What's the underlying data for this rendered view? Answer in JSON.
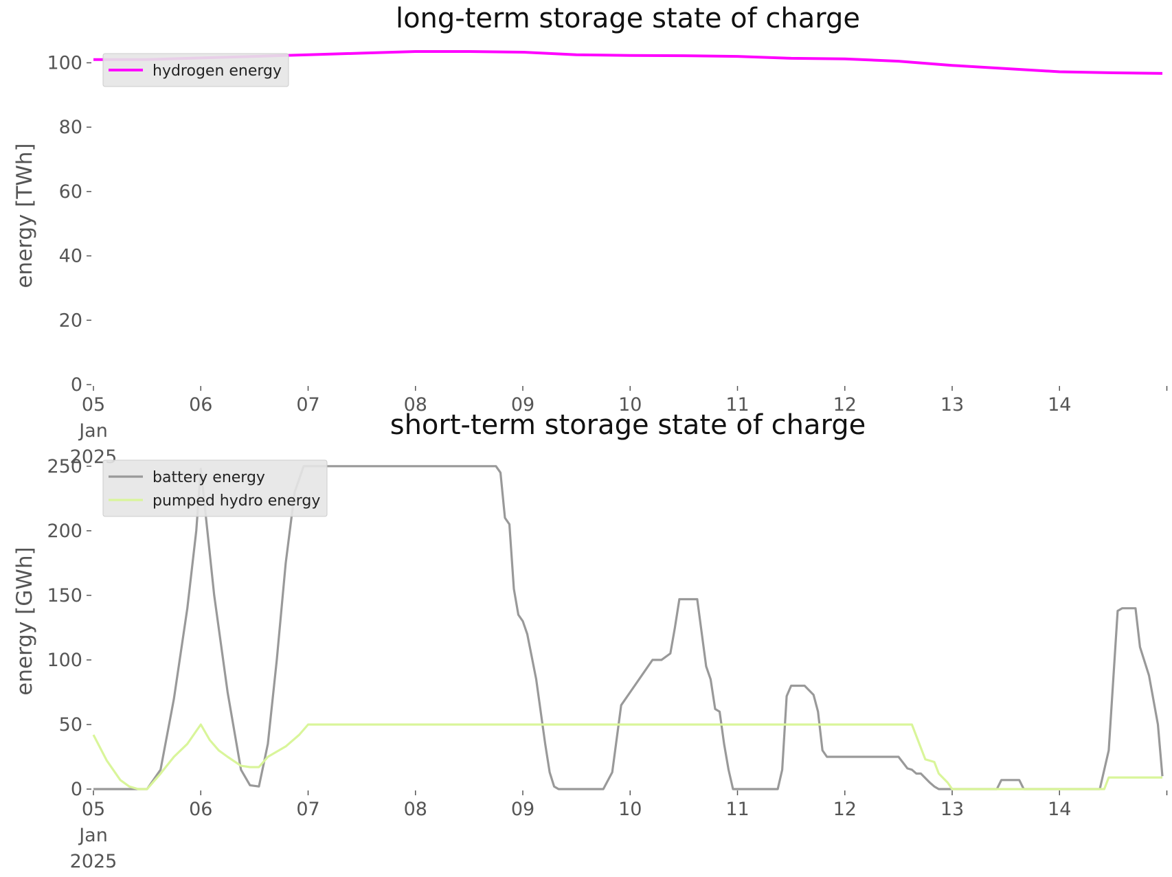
{
  "chart_data": [
    {
      "type": "line",
      "title": "long-term storage state of charge",
      "xlabel": "",
      "ylabel": "energy [TWh]",
      "ylim": [
        0,
        105
      ],
      "yticks": [
        0,
        20,
        40,
        60,
        80,
        100
      ],
      "x_tick_labels": [
        {
          "label": [
            "05",
            "Jan",
            "2025"
          ],
          "x": "2025-01-05"
        },
        {
          "label": [
            "06"
          ],
          "x": "2025-01-06"
        },
        {
          "label": [
            "07"
          ],
          "x": "2025-01-07"
        },
        {
          "label": [
            "08"
          ],
          "x": "2025-01-08"
        },
        {
          "label": [
            "09"
          ],
          "x": "2025-01-09"
        },
        {
          "label": [
            "10"
          ],
          "x": "2025-01-10"
        },
        {
          "label": [
            "11"
          ],
          "x": "2025-01-11"
        },
        {
          "label": [
            "12"
          ],
          "x": "2025-01-12"
        },
        {
          "label": [
            "13"
          ],
          "x": "2025-01-13"
        },
        {
          "label": [
            "14"
          ],
          "x": "2025-01-14"
        },
        {
          "label": [
            ""
          ],
          "x": "2025-01-15"
        }
      ],
      "xlim": [
        "2025-01-05",
        "2025-01-14 23:00"
      ],
      "grid": false,
      "legend": "upper-left",
      "series": [
        {
          "name": "hydrogen energy",
          "color": "#ff00ff",
          "x": [
            "2025-01-05 00:00",
            "2025-01-05 12:00",
            "2025-01-06 00:00",
            "2025-01-06 12:00",
            "2025-01-07 00:00",
            "2025-01-07 12:00",
            "2025-01-08 00:00",
            "2025-01-08 12:00",
            "2025-01-09 00:00",
            "2025-01-09 12:00",
            "2025-01-10 00:00",
            "2025-01-10 12:00",
            "2025-01-11 00:00",
            "2025-01-11 12:00",
            "2025-01-12 00:00",
            "2025-01-12 12:00",
            "2025-01-13 00:00",
            "2025-01-13 12:00",
            "2025-01-14 00:00",
            "2025-01-14 12:00",
            "2025-01-14 23:00"
          ],
          "values": [
            101,
            101,
            101.5,
            102,
            102.5,
            103,
            103.5,
            103.5,
            103.3,
            102.5,
            102.3,
            102.2,
            102,
            101.4,
            101.2,
            100.5,
            99.2,
            98.2,
            97.2,
            96.9,
            96.7
          ]
        }
      ]
    },
    {
      "type": "line",
      "title": "short-term storage state of charge",
      "xlabel": "",
      "ylabel": "energy [GWh]",
      "ylim": [
        0,
        260
      ],
      "yticks": [
        0,
        50,
        100,
        150,
        200,
        250
      ],
      "x_tick_labels": [
        {
          "label": [
            "05",
            "Jan",
            "2025"
          ],
          "x": "2025-01-05"
        },
        {
          "label": [
            "06"
          ],
          "x": "2025-01-06"
        },
        {
          "label": [
            "07"
          ],
          "x": "2025-01-07"
        },
        {
          "label": [
            "08"
          ],
          "x": "2025-01-08"
        },
        {
          "label": [
            "09"
          ],
          "x": "2025-01-09"
        },
        {
          "label": [
            "10"
          ],
          "x": "2025-01-10"
        },
        {
          "label": [
            "11"
          ],
          "x": "2025-01-11"
        },
        {
          "label": [
            "12"
          ],
          "x": "2025-01-12"
        },
        {
          "label": [
            "13"
          ],
          "x": "2025-01-13"
        },
        {
          "label": [
            "14"
          ],
          "x": "2025-01-14"
        },
        {
          "label": [
            ""
          ],
          "x": "2025-01-15"
        }
      ],
      "xlim": [
        "2025-01-05",
        "2025-01-14 23:00"
      ],
      "grid": false,
      "legend": "upper-left",
      "series": [
        {
          "name": "battery energy",
          "color": "#999999",
          "x": [
            "2025-01-05 00:00",
            "2025-01-05 03:00",
            "2025-01-05 06:00",
            "2025-01-05 09:00",
            "2025-01-05 12:00",
            "2025-01-05 15:00",
            "2025-01-05 18:00",
            "2025-01-05 21:00",
            "2025-01-05 23:00",
            "2025-01-06 00:00",
            "2025-01-06 03:00",
            "2025-01-06 06:00",
            "2025-01-06 09:00",
            "2025-01-06 11:00",
            "2025-01-06 13:00",
            "2025-01-06 15:00",
            "2025-01-06 17:00",
            "2025-01-06 19:00",
            "2025-01-06 21:00",
            "2025-01-06 23:00",
            "2025-01-07 00:00",
            "2025-01-08 00:00",
            "2025-01-08 18:00",
            "2025-01-08 19:00",
            "2025-01-08 20:00",
            "2025-01-08 21:00",
            "2025-01-08 22:00",
            "2025-01-08 23:00",
            "2025-01-09 00:00",
            "2025-01-09 01:00",
            "2025-01-09 03:00",
            "2025-01-09 05:00",
            "2025-01-09 06:00",
            "2025-01-09 07:00",
            "2025-01-09 08:00",
            "2025-01-09 09:00",
            "2025-01-09 10:00",
            "2025-01-09 12:00",
            "2025-01-09 18:00",
            "2025-01-09 20:00",
            "2025-01-09 22:00",
            "2025-01-10 00:00",
            "2025-01-10 01:00",
            "2025-01-10 03:00",
            "2025-01-10 05:00",
            "2025-01-10 07:00",
            "2025-01-10 09:00",
            "2025-01-10 10:00",
            "2025-01-10 11:00",
            "2025-01-10 13:00",
            "2025-01-10 15:00",
            "2025-01-10 17:00",
            "2025-01-10 18:00",
            "2025-01-10 19:00",
            "2025-01-10 20:00",
            "2025-01-10 21:00",
            "2025-01-10 22:00",
            "2025-01-10 23:00",
            "2025-01-11 00:00",
            "2025-01-11 09:00",
            "2025-01-11 10:00",
            "2025-01-11 11:00",
            "2025-01-11 12:00",
            "2025-01-11 13:00",
            "2025-01-11 15:00",
            "2025-01-11 17:00",
            "2025-01-11 18:00",
            "2025-01-11 19:00",
            "2025-01-11 20:00",
            "2025-01-11 21:00",
            "2025-01-11 22:00",
            "2025-01-11 23:00",
            "2025-01-12 00:00",
            "2025-01-12 12:00",
            "2025-01-12 14:00",
            "2025-01-12 15:00",
            "2025-01-12 16:00",
            "2025-01-12 17:00",
            "2025-01-12 19:00",
            "2025-01-12 20:00",
            "2025-01-12 21:00",
            "2025-01-12 22:00",
            "2025-01-13 00:00",
            "2025-01-13 10:00",
            "2025-01-13 11:00",
            "2025-01-13 15:00",
            "2025-01-13 16:00",
            "2025-01-14 00:00",
            "2025-01-14 09:00",
            "2025-01-14 11:00",
            "2025-01-14 13:00",
            "2025-01-14 14:00",
            "2025-01-14 17:00",
            "2025-01-14 18:00",
            "2025-01-14 20:00",
            "2025-01-14 22:00",
            "2025-01-14 23:00"
          ],
          "values": [
            0,
            0,
            0,
            0,
            0,
            15,
            70,
            140,
            200,
            248,
            150,
            75,
            15,
            3,
            2,
            35,
            100,
            175,
            230,
            250,
            250,
            250,
            250,
            245,
            210,
            205,
            155,
            135,
            130,
            120,
            85,
            35,
            13,
            2,
            0,
            0,
            0,
            0,
            0,
            13,
            65,
            75,
            80,
            90,
            100,
            100,
            105,
            125,
            147,
            147,
            147,
            95,
            85,
            62,
            60,
            35,
            15,
            0,
            0,
            0,
            15,
            72,
            80,
            80,
            80,
            73,
            60,
            30,
            25,
            25,
            25,
            25,
            25,
            25,
            16,
            15,
            12,
            12,
            5,
            2,
            0,
            0,
            0,
            0,
            7,
            7,
            0,
            0,
            0,
            30,
            138,
            140,
            140,
            110,
            88,
            50,
            10
          ],
          "note_x_units": "dates"
        },
        {
          "name": "pumped hydro energy",
          "color": "#d9f59a",
          "x": [
            "2025-01-05 00:00",
            "2025-01-05 03:00",
            "2025-01-05 06:00",
            "2025-01-05 08:00",
            "2025-01-05 10:00",
            "2025-01-05 12:00",
            "2025-01-05 15:00",
            "2025-01-05 18:00",
            "2025-01-05 21:00",
            "2025-01-05 23:00",
            "2025-01-06 00:00",
            "2025-01-06 02:00",
            "2025-01-06 04:00",
            "2025-01-06 06:00",
            "2025-01-06 09:00",
            "2025-01-06 11:00",
            "2025-01-06 13:00",
            "2025-01-06 15:00",
            "2025-01-06 19:00",
            "2025-01-06 22:00",
            "2025-01-07 00:00",
            "2025-01-12 15:00",
            "2025-01-12 18:00",
            "2025-01-12 20:00",
            "2025-01-12 21:00",
            "2025-01-12 23:00",
            "2025-01-13 00:00",
            "2025-01-14 10:00",
            "2025-01-14 11:00",
            "2025-01-14 23:00"
          ],
          "values": [
            42,
            22,
            7,
            2,
            0,
            0,
            12,
            25,
            35,
            45,
            50,
            38,
            30,
            25,
            18,
            17,
            17,
            25,
            33,
            42,
            50,
            50,
            23,
            21,
            12,
            5,
            0,
            0,
            9,
            9
          ]
        }
      ]
    }
  ]
}
